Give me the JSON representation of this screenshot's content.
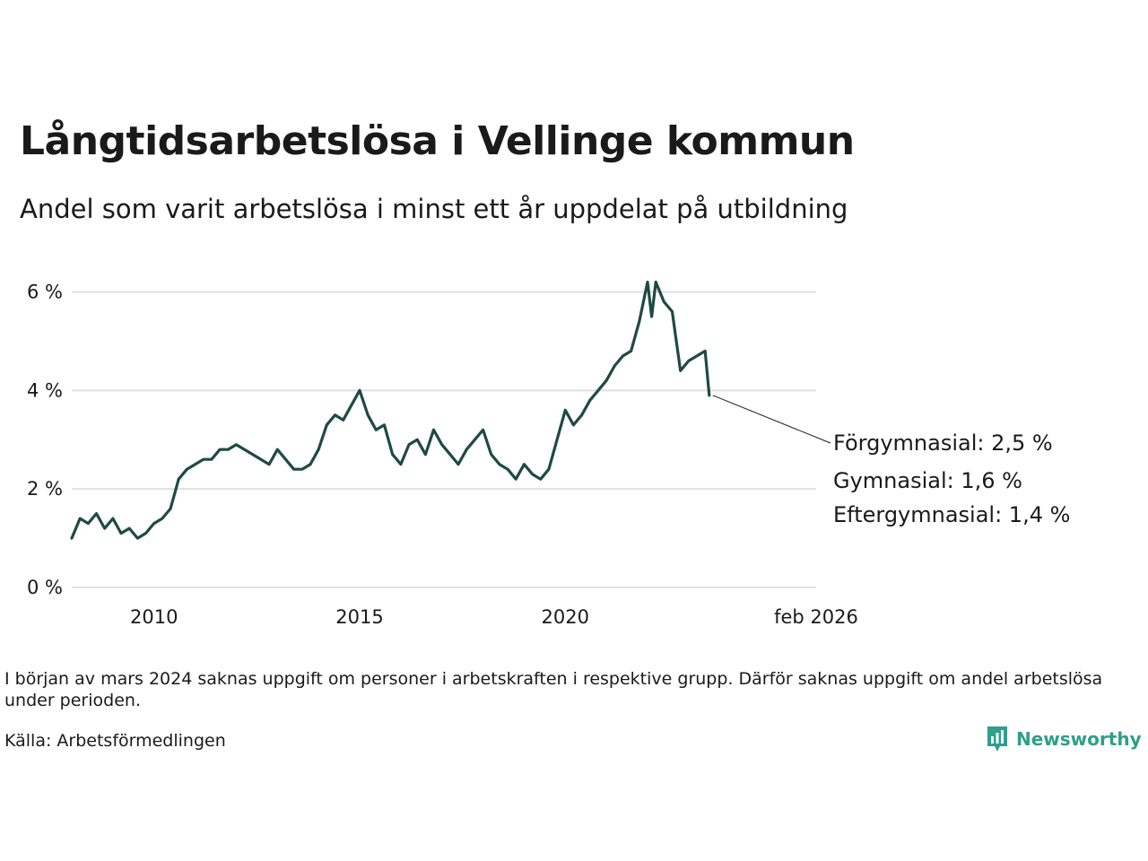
{
  "title": "Långtidsarbetslösa i Vellinge kommun",
  "subtitle": "Andel som varit arbetslösa i minst ett år uppdelat på utbildning",
  "note": "I början av mars 2024 saknas uppgift om personer i arbetskraften i respektive grupp. Därför saknas uppgift om andel arbetslösa under perioden.",
  "source": "Källa: Arbetsförmedlingen",
  "brand": "Newsworthy",
  "chart_data": {
    "type": "line",
    "x_unit": "decimal year",
    "xlim": [
      2008.0,
      2026.1
    ],
    "ylim": [
      0,
      6.3
    ],
    "y_ticks": [
      {
        "value": 0,
        "label": "0 %"
      },
      {
        "value": 2,
        "label": "2 %"
      },
      {
        "value": 4,
        "label": "4 %"
      },
      {
        "value": 6,
        "label": "6 %"
      }
    ],
    "x_ticks": [
      {
        "value": 2010,
        "label": "2010"
      },
      {
        "value": 2015,
        "label": "2015"
      },
      {
        "value": 2020,
        "label": "2020"
      },
      {
        "value": 2026.1,
        "label": "feb 2026"
      }
    ],
    "gap": {
      "from": 2023.5,
      "to": 2024.3
    },
    "grid": true,
    "legend": "direct labels at line ends",
    "series": [
      {
        "name": "Förgymnasial",
        "end_label": "Förgymnasial: 2,5 %",
        "color": "#1f4a40",
        "points": [
          [
            2008.0,
            1.0
          ],
          [
            2008.2,
            1.4
          ],
          [
            2008.4,
            1.3
          ],
          [
            2008.6,
            1.5
          ],
          [
            2008.8,
            1.2
          ],
          [
            2009.0,
            1.4
          ],
          [
            2009.2,
            1.1
          ],
          [
            2009.4,
            1.2
          ],
          [
            2009.6,
            1.0
          ],
          [
            2009.8,
            1.1
          ],
          [
            2010.0,
            1.3
          ],
          [
            2010.2,
            1.4
          ],
          [
            2010.4,
            1.6
          ],
          [
            2010.6,
            2.2
          ],
          [
            2010.8,
            2.4
          ],
          [
            2011.0,
            2.5
          ],
          [
            2011.2,
            2.6
          ],
          [
            2011.4,
            2.6
          ],
          [
            2011.6,
            2.8
          ],
          [
            2011.8,
            2.8
          ],
          [
            2012.0,
            2.9
          ],
          [
            2012.2,
            2.8
          ],
          [
            2012.4,
            2.7
          ],
          [
            2012.6,
            2.6
          ],
          [
            2012.8,
            2.5
          ],
          [
            2013.0,
            2.8
          ],
          [
            2013.2,
            2.6
          ],
          [
            2013.4,
            2.4
          ],
          [
            2013.6,
            2.4
          ],
          [
            2013.8,
            2.5
          ],
          [
            2014.0,
            2.8
          ],
          [
            2014.2,
            3.3
          ],
          [
            2014.4,
            3.5
          ],
          [
            2014.6,
            3.4
          ],
          [
            2014.8,
            3.7
          ],
          [
            2015.0,
            4.0
          ],
          [
            2015.2,
            3.5
          ],
          [
            2015.4,
            3.2
          ],
          [
            2015.6,
            3.3
          ],
          [
            2015.8,
            2.7
          ],
          [
            2016.0,
            2.5
          ],
          [
            2016.2,
            2.9
          ],
          [
            2016.4,
            3.0
          ],
          [
            2016.6,
            2.7
          ],
          [
            2016.8,
            3.2
          ],
          [
            2017.0,
            2.9
          ],
          [
            2017.2,
            2.7
          ],
          [
            2017.4,
            2.5
          ],
          [
            2017.6,
            2.8
          ],
          [
            2017.8,
            3.0
          ],
          [
            2018.0,
            3.2
          ],
          [
            2018.2,
            2.7
          ],
          [
            2018.4,
            2.5
          ],
          [
            2018.6,
            2.4
          ],
          [
            2018.8,
            2.2
          ],
          [
            2019.0,
            2.5
          ],
          [
            2019.2,
            2.3
          ],
          [
            2019.4,
            2.2
          ],
          [
            2019.6,
            2.4
          ],
          [
            2019.8,
            3.0
          ],
          [
            2020.0,
            3.6
          ],
          [
            2020.2,
            3.3
          ],
          [
            2020.4,
            3.5
          ],
          [
            2020.6,
            3.8
          ],
          [
            2020.8,
            4.0
          ],
          [
            2021.0,
            4.2
          ],
          [
            2021.2,
            4.5
          ],
          [
            2021.4,
            4.7
          ],
          [
            2021.6,
            4.8
          ],
          [
            2021.8,
            5.4
          ],
          [
            2022.0,
            6.2
          ],
          [
            2022.1,
            5.5
          ],
          [
            2022.2,
            6.2
          ],
          [
            2022.4,
            5.8
          ],
          [
            2022.6,
            5.6
          ],
          [
            2022.8,
            4.4
          ],
          [
            2023.0,
            4.6
          ],
          [
            2023.2,
            4.7
          ],
          [
            2023.4,
            4.8
          ],
          [
            2023.5,
            3.9
          ]
        ],
        "points_after_gap": []
      },
      {
        "name": "Gymnasial",
        "end_label": "Gymnasial: 1,6 %",
        "color": "#d4a24c",
        "points": [],
        "points_after_gap": []
      },
      {
        "name": "Eftergymnasial",
        "end_label": "Eftergymnasial: 1,4 %",
        "color": "#1a9985",
        "points": [],
        "points_after_gap": []
      }
    ]
  }
}
